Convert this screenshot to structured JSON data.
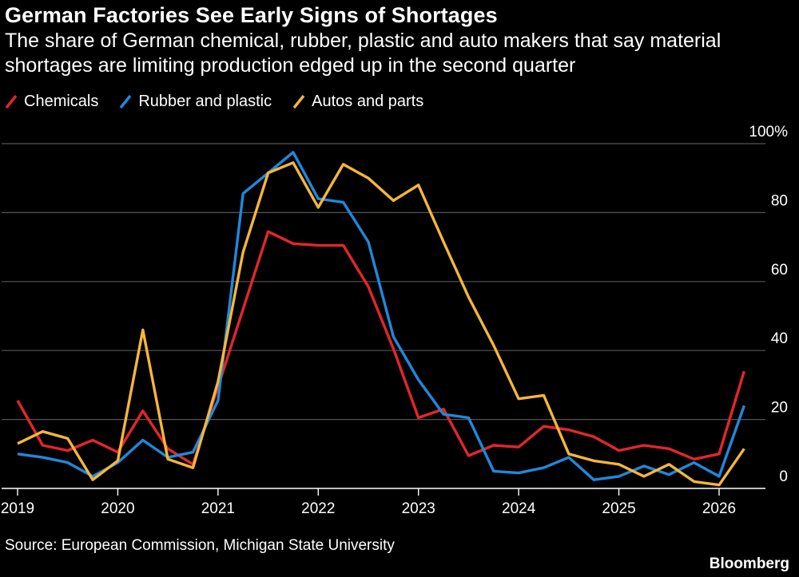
{
  "title": "German Factories See Early Signs of Shortages",
  "subtitle": "The share of German chemical, rubber, plastic and auto makers that say material shortages are limiting production edged up in the second quarter",
  "source": "Source: European Commission, Michigan State University",
  "brand": "Bloomberg",
  "chart_data": {
    "type": "line",
    "title": "German Factories See Early Signs of Shortages",
    "xlabel": "",
    "ylabel": "",
    "ylim": [
      0,
      100
    ],
    "xlim": [
      2019,
      2026.5
    ],
    "y_ticks": [
      0,
      20,
      40,
      60,
      80,
      100
    ],
    "y_tick_labels": [
      "0",
      "20",
      "40",
      "60",
      "80",
      "100%"
    ],
    "x_ticks": [
      2019,
      2020,
      2021,
      2022,
      2023,
      2024,
      2025,
      2026
    ],
    "x_tick_labels": [
      "2019",
      "2020",
      "2021",
      "2022",
      "2023",
      "2024",
      "2025",
      "2026"
    ],
    "y_axis_position": "right",
    "grid": true,
    "legend_position": "top-left",
    "series": [
      {
        "name": "Chemicals",
        "color": "#e3262a",
        "x": [
          2019.0,
          2019.25,
          2019.5,
          2019.75,
          2020.0,
          2020.25,
          2020.5,
          2020.75,
          2021.0,
          2021.25,
          2021.5,
          2021.75,
          2022.0,
          2022.25,
          2022.5,
          2022.75,
          2023.0,
          2023.25,
          2023.5,
          2023.75,
          2024.0,
          2024.25,
          2024.5,
          2024.75,
          2025.0,
          2025.25,
          2025.5,
          2025.75,
          2026.0,
          2026.25
        ],
        "values": [
          25.5,
          12.5,
          11.0,
          14.0,
          10.5,
          22.5,
          11.5,
          7.0,
          29.5,
          52.0,
          74.5,
          71.0,
          70.5,
          70.5,
          58.5,
          40.5,
          20.5,
          23.0,
          9.5,
          12.5,
          12.0,
          18.0,
          17.0,
          15.0,
          11.0,
          12.5,
          11.5,
          8.5,
          10.0,
          34.0
        ]
      },
      {
        "name": "Rubber and plastic",
        "color": "#1f88dc",
        "x": [
          2019.0,
          2019.25,
          2019.5,
          2019.75,
          2020.0,
          2020.25,
          2020.5,
          2020.75,
          2021.0,
          2021.25,
          2021.5,
          2021.75,
          2022.0,
          2022.25,
          2022.5,
          2022.75,
          2023.0,
          2023.25,
          2023.5,
          2023.75,
          2024.0,
          2024.25,
          2024.5,
          2024.75,
          2025.0,
          2025.25,
          2025.5,
          2025.75,
          2026.0,
          2026.25
        ],
        "values": [
          10.0,
          9.0,
          7.5,
          3.5,
          7.5,
          14.0,
          9.0,
          10.5,
          25.5,
          85.5,
          91.5,
          97.5,
          84.0,
          83.0,
          71.5,
          44.0,
          31.5,
          21.5,
          20.5,
          5.0,
          4.5,
          6.0,
          9.0,
          2.5,
          3.5,
          6.5,
          4.0,
          7.5,
          3.5,
          24.0
        ]
      },
      {
        "name": "Autos and parts",
        "color": "#f5b63a",
        "x": [
          2019.0,
          2019.25,
          2019.5,
          2019.75,
          2020.0,
          2020.25,
          2020.5,
          2020.75,
          2021.0,
          2021.25,
          2021.5,
          2021.75,
          2022.0,
          2022.25,
          2022.5,
          2022.75,
          2023.0,
          2023.25,
          2023.5,
          2023.75,
          2024.0,
          2024.25,
          2024.5,
          2024.75,
          2025.0,
          2025.25,
          2025.5,
          2025.75,
          2026.0,
          2026.25
        ],
        "values": [
          13.0,
          16.5,
          14.5,
          2.5,
          8.0,
          46.0,
          8.5,
          6.0,
          31.0,
          68.5,
          91.5,
          94.5,
          81.5,
          94.0,
          90.0,
          83.5,
          88.0,
          71.5,
          55.5,
          41.5,
          26.0,
          27.0,
          10.0,
          8.0,
          7.0,
          3.5,
          7.0,
          2.0,
          1.0,
          11.5
        ]
      }
    ]
  }
}
